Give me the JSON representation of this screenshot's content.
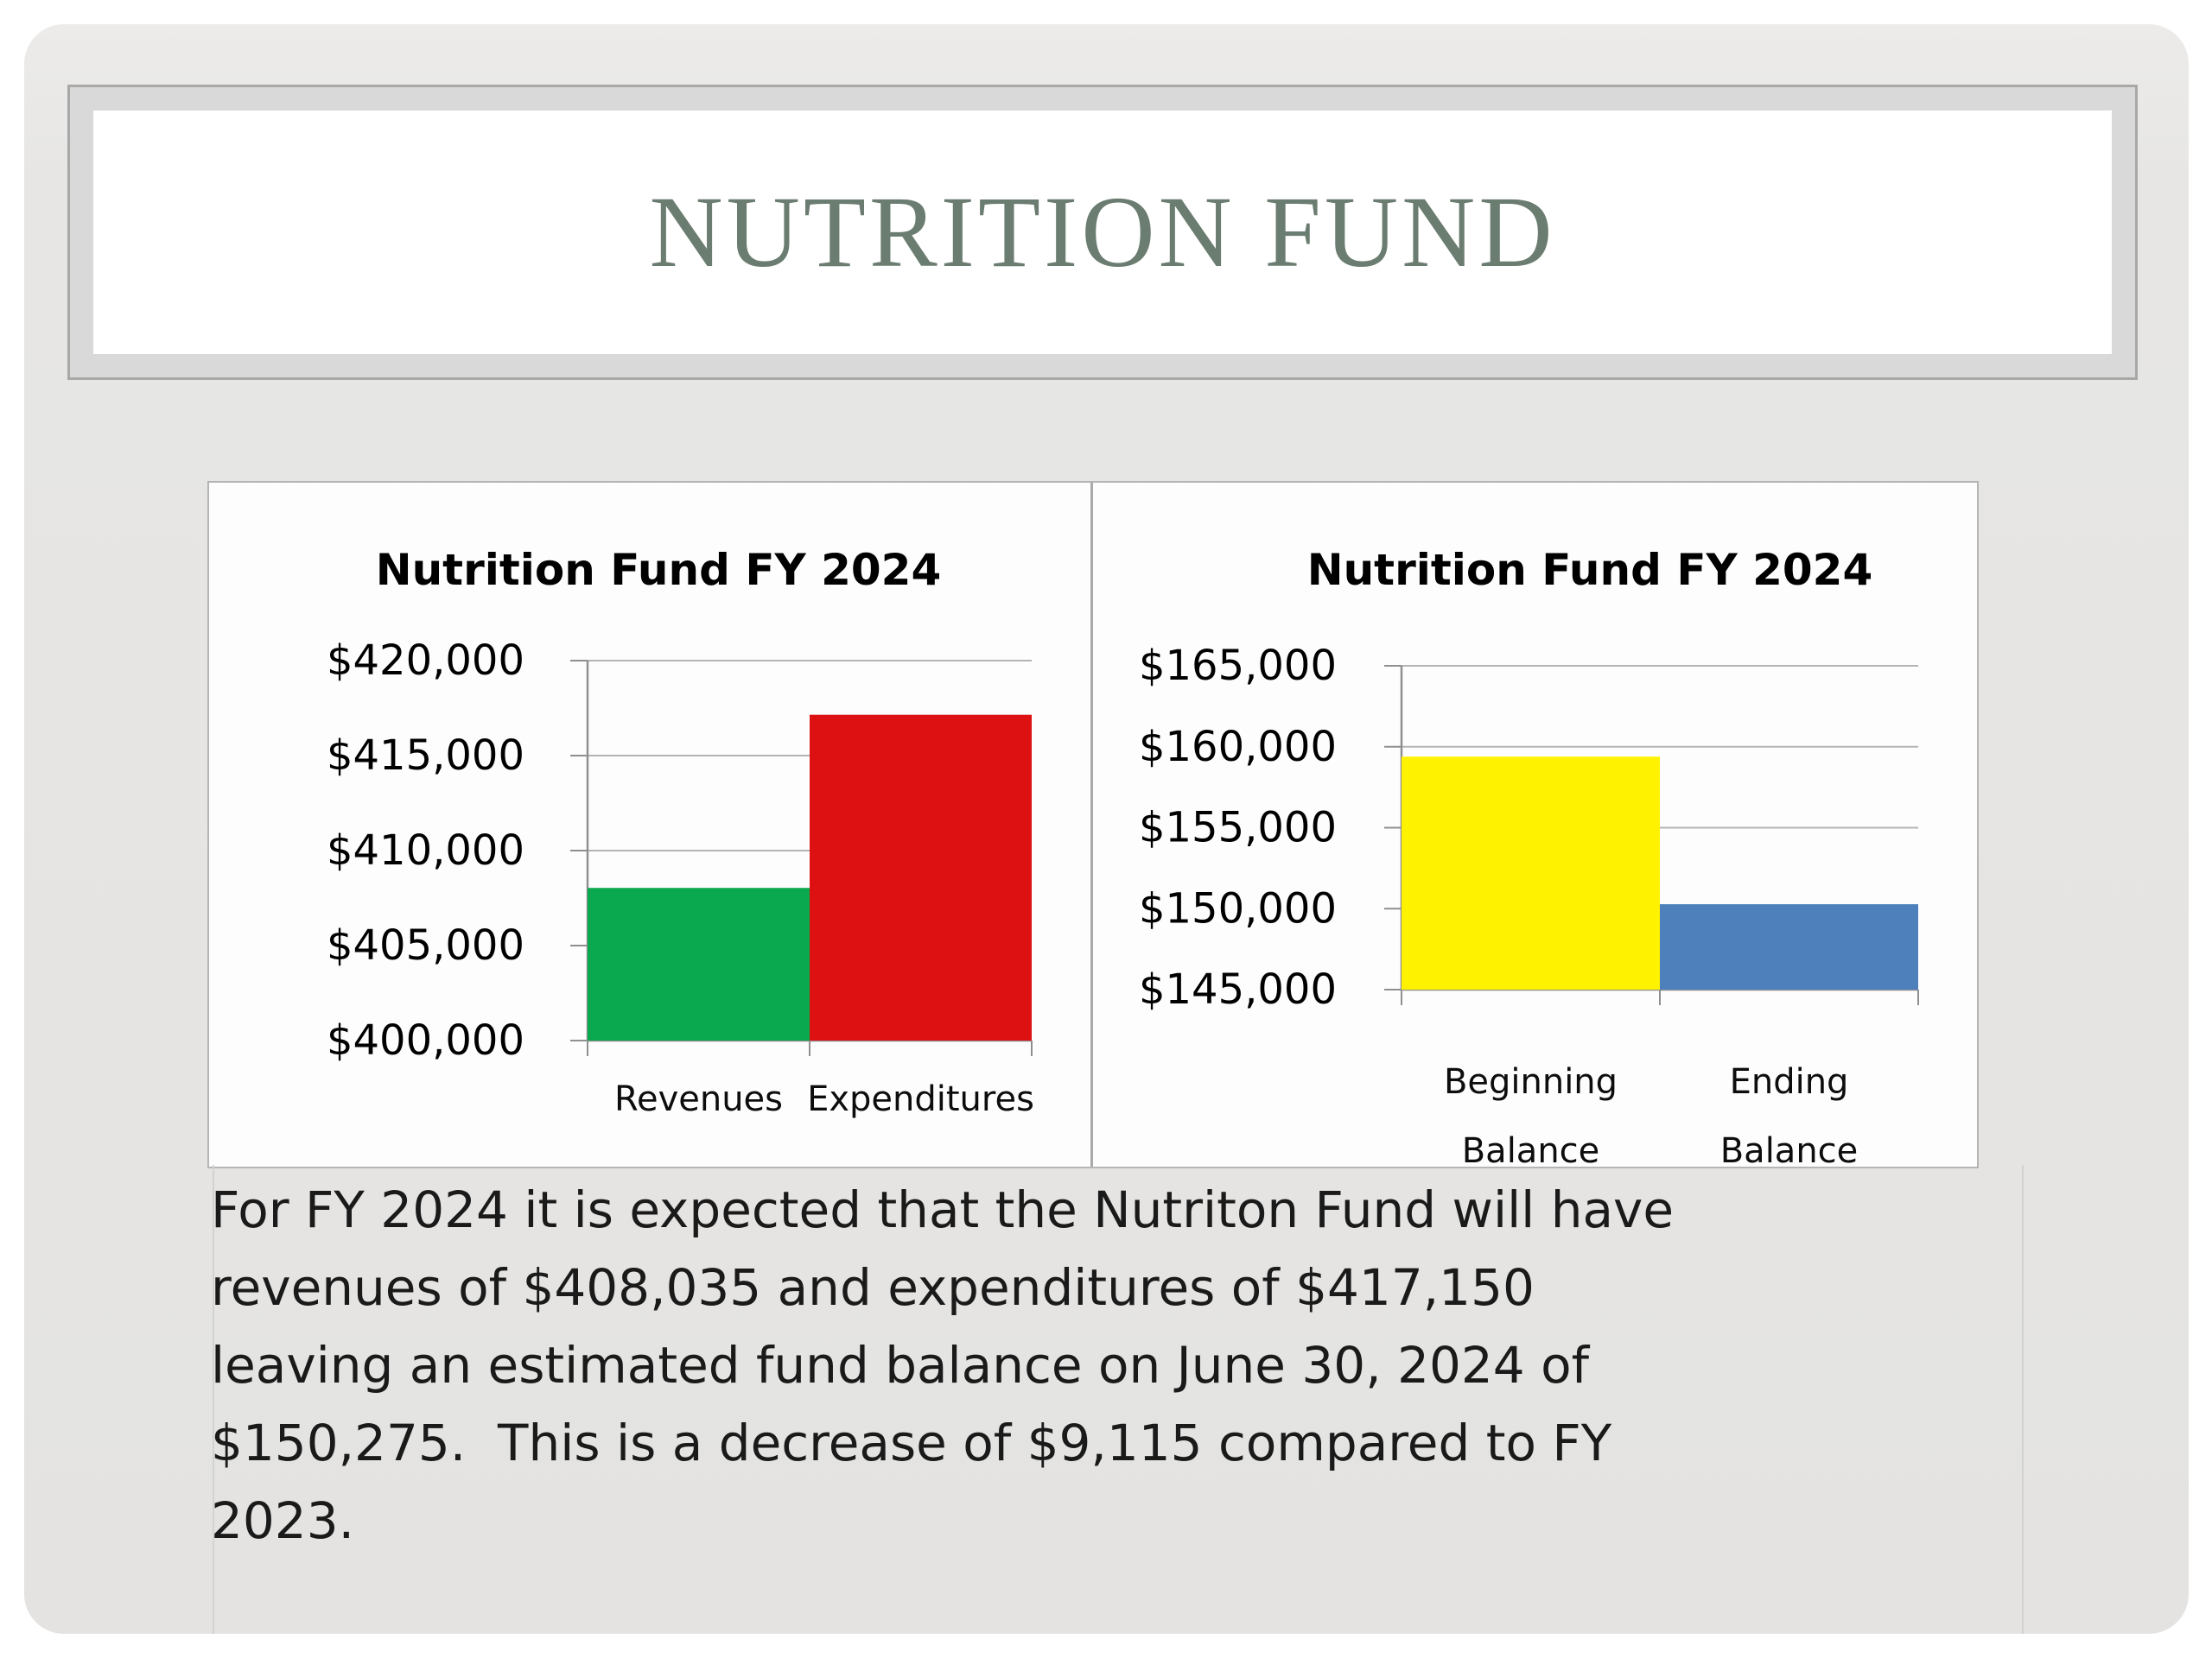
{
  "title": "NUTRITION FUND",
  "body": {
    "text": "For FY 2024 it is expected that the Nutriton Fund will have\nrevenues of $408,035 and expenditures of $417,150\nleaving an estimated fund balance on June 30, 2024 of\n$150,275.  This is a decrease of $9,115 compared to FY\n2023."
  },
  "colors": {
    "title_text": "#6b7c70",
    "revenues_green": "#0aa84f",
    "expenditures_red": "#dd1112",
    "beginning_yellow": "#fff200",
    "ending_blue": "#4e81bc",
    "gridline": "#b4b4b4",
    "axis": "#8f8f8f"
  },
  "chart_data": [
    {
      "type": "bar",
      "title": "Nutrition Fund FY 2024",
      "categories": [
        "Revenues",
        "Expenditures"
      ],
      "values": [
        408035,
        417150
      ],
      "colors": [
        "#0aa84f",
        "#dd1112"
      ],
      "xlabel": "",
      "ylabel": "",
      "ylim": [
        400000,
        420000
      ],
      "ytick_step": 5000,
      "ytick_labels": [
        "$400,000",
        "$405,000",
        "$410,000",
        "$415,000",
        "$420,000"
      ],
      "grid": true,
      "legend": "none"
    },
    {
      "type": "bar",
      "title": "Nutrition Fund FY 2024",
      "categories": [
        "Beginning\nBalance",
        "Ending\nBalance"
      ],
      "values": [
        159390,
        150275
      ],
      "colors": [
        "#fff200",
        "#4e81bc"
      ],
      "xlabel": "",
      "ylabel": "",
      "ylim": [
        145000,
        165000
      ],
      "ytick_step": 5000,
      "ytick_labels": [
        "$145,000",
        "$150,000",
        "$155,000",
        "$160,000",
        "$165,000"
      ],
      "grid": true,
      "legend": "none"
    }
  ]
}
